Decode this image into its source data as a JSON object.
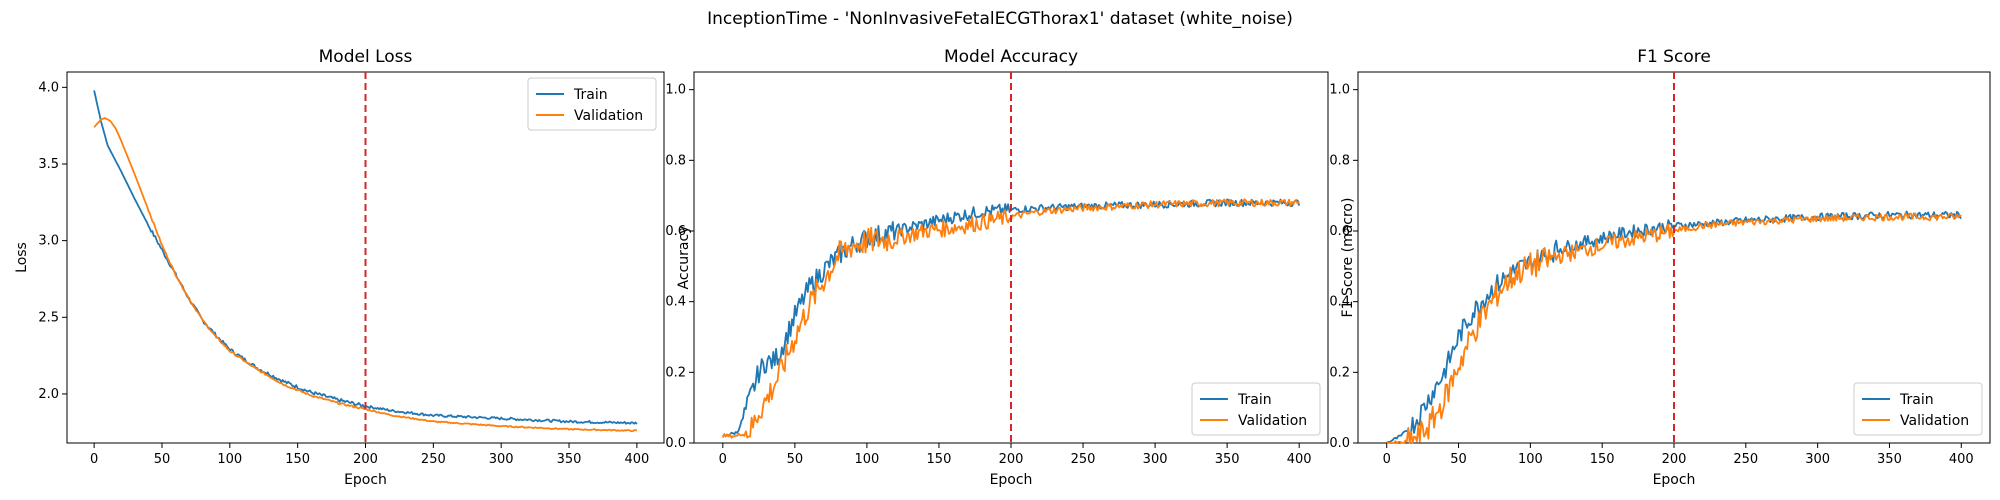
{
  "figure_title": "InceptionTime - 'NonInvasiveFetalECGThorax1' dataset (white_noise)",
  "chart_data": [
    {
      "type": "line",
      "title": "Model Loss",
      "xlabel": "Epoch",
      "ylabel": "Loss",
      "xlim": [
        -20,
        420
      ],
      "ylim": [
        1.68,
        4.1
      ],
      "xticks": [
        0,
        50,
        100,
        150,
        200,
        250,
        300,
        350,
        400
      ],
      "yticks": [
        2.0,
        2.5,
        3.0,
        3.5,
        4.0
      ],
      "ytick_labels": [
        "2.0",
        "2.5",
        "3.0",
        "3.5",
        "4.0"
      ],
      "vline_x": 200,
      "vline_color": "#d62728",
      "legend": "top-right",
      "grid": false,
      "series": [
        {
          "name": "Train",
          "color": "#1f77b4",
          "x": [
            0,
            5,
            10,
            20,
            30,
            40,
            50,
            60,
            70,
            80,
            90,
            100,
            120,
            140,
            160,
            180,
            200,
            220,
            250,
            300,
            350,
            400
          ],
          "y": [
            3.98,
            3.78,
            3.62,
            3.45,
            3.27,
            3.1,
            2.94,
            2.78,
            2.62,
            2.48,
            2.38,
            2.29,
            2.17,
            2.08,
            2.01,
            1.96,
            1.92,
            1.89,
            1.86,
            1.84,
            1.82,
            1.81
          ]
        },
        {
          "name": "Validation",
          "color": "#ff7f0e",
          "x": [
            0,
            5,
            8,
            12,
            16,
            20,
            30,
            40,
            50,
            60,
            70,
            80,
            90,
            100,
            120,
            140,
            160,
            180,
            200,
            220,
            250,
            300,
            350,
            400
          ],
          "y": [
            3.74,
            3.79,
            3.8,
            3.78,
            3.73,
            3.65,
            3.43,
            3.2,
            2.97,
            2.78,
            2.62,
            2.48,
            2.37,
            2.28,
            2.16,
            2.06,
            1.99,
            1.94,
            1.9,
            1.86,
            1.82,
            1.79,
            1.77,
            1.76
          ]
        }
      ]
    },
    {
      "type": "line",
      "title": "Model Accuracy",
      "xlabel": "Epoch",
      "ylabel": "Accuracy",
      "xlim": [
        -20,
        420
      ],
      "ylim": [
        0,
        1.05
      ],
      "xticks": [
        0,
        50,
        100,
        150,
        200,
        250,
        300,
        350,
        400
      ],
      "yticks": [
        0.0,
        0.2,
        0.4,
        0.6,
        0.8,
        1.0
      ],
      "ytick_labels": [
        "0.0",
        "0.2",
        "0.4",
        "0.6",
        "0.8",
        "1.0"
      ],
      "vline_x": 200,
      "vline_color": "#d62728",
      "legend": "bottom-right",
      "grid": false,
      "series": [
        {
          "name": "Train",
          "color": "#1f77b4",
          "x": [
            0,
            10,
            15,
            20,
            25,
            30,
            35,
            40,
            50,
            60,
            70,
            80,
            90,
            100,
            120,
            140,
            160,
            180,
            200,
            220,
            250,
            300,
            350,
            400
          ],
          "y": [
            0.02,
            0.03,
            0.08,
            0.14,
            0.2,
            0.23,
            0.23,
            0.26,
            0.36,
            0.44,
            0.49,
            0.53,
            0.56,
            0.58,
            0.6,
            0.62,
            0.64,
            0.655,
            0.66,
            0.665,
            0.67,
            0.675,
            0.68,
            0.68
          ]
        },
        {
          "name": "Validation",
          "color": "#ff7f0e",
          "x": [
            0,
            10,
            20,
            25,
            30,
            40,
            50,
            60,
            70,
            80,
            90,
            100,
            120,
            140,
            160,
            180,
            200,
            220,
            250,
            300,
            350,
            400
          ],
          "y": [
            0.02,
            0.02,
            0.04,
            0.09,
            0.12,
            0.2,
            0.3,
            0.39,
            0.46,
            0.53,
            0.56,
            0.57,
            0.58,
            0.6,
            0.61,
            0.625,
            0.64,
            0.655,
            0.665,
            0.675,
            0.68,
            0.68
          ]
        }
      ]
    },
    {
      "type": "line",
      "title": "F1 Score",
      "xlabel": "Epoch",
      "ylabel": "F1 Score (macro)",
      "xlim": [
        -20,
        420
      ],
      "ylim": [
        0,
        1.05
      ],
      "xticks": [
        0,
        50,
        100,
        150,
        200,
        250,
        300,
        350,
        400
      ],
      "yticks": [
        0.0,
        0.2,
        0.4,
        0.6,
        0.8,
        1.0
      ],
      "ytick_labels": [
        "0.0",
        "0.2",
        "0.4",
        "0.6",
        "0.8",
        "1.0"
      ],
      "vline_x": 200,
      "vline_color": "#d62728",
      "legend": "bottom-right",
      "grid": false,
      "series": [
        {
          "name": "Train",
          "color": "#1f77b4",
          "x": [
            0,
            10,
            20,
            30,
            40,
            50,
            60,
            70,
            80,
            90,
            100,
            120,
            140,
            160,
            180,
            200,
            220,
            250,
            300,
            350,
            400
          ],
          "y": [
            0.0,
            0.02,
            0.06,
            0.13,
            0.2,
            0.3,
            0.37,
            0.42,
            0.46,
            0.49,
            0.51,
            0.55,
            0.57,
            0.59,
            0.605,
            0.615,
            0.62,
            0.63,
            0.64,
            0.645,
            0.645
          ]
        },
        {
          "name": "Validation",
          "color": "#ff7f0e",
          "x": [
            0,
            10,
            20,
            30,
            40,
            50,
            60,
            70,
            80,
            90,
            100,
            120,
            140,
            160,
            180,
            200,
            220,
            250,
            300,
            350,
            400
          ],
          "y": [
            0.0,
            0.0,
            0.01,
            0.05,
            0.12,
            0.22,
            0.31,
            0.38,
            0.44,
            0.48,
            0.5,
            0.53,
            0.55,
            0.57,
            0.585,
            0.6,
            0.615,
            0.625,
            0.635,
            0.64,
            0.64
          ]
        }
      ]
    }
  ]
}
